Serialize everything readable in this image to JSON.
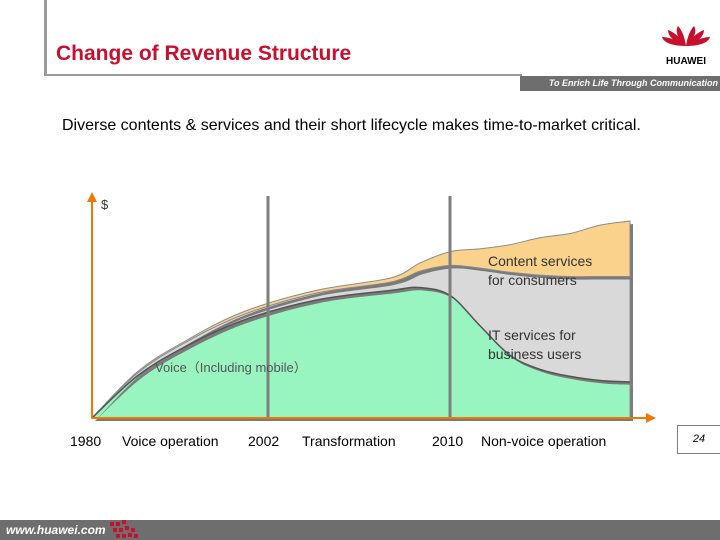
{
  "header": {
    "title": "Change of Revenue Structure",
    "slogan": "To Enrich Life Through Communication",
    "logo_text": "HUAWEI"
  },
  "intro_text": "Diverse contents & services and their short lifecycle makes time-to-market critical.",
  "chart_data": {
    "type": "area",
    "stacked": true,
    "ylabel": "$",
    "x_ticks": [
      "1980",
      "2002",
      "2010"
    ],
    "phases": [
      "Voice operation",
      "Transformation",
      "Non-voice operation"
    ],
    "x": [
      1980,
      1983,
      1986,
      1990,
      1995,
      2000,
      2002,
      2004,
      2006,
      2008,
      2010,
      2012,
      2014,
      2016
    ],
    "series": [
      {
        "name": "Voice（Including mobile）",
        "color": "#99f5bf",
        "values": [
          0,
          30,
          50,
          70,
          85,
          92,
          94,
          88,
          66,
          45,
          35,
          30,
          27,
          26
        ]
      },
      {
        "name": "IT services for business users",
        "color": "#d9d9d9",
        "values": [
          0,
          2,
          3,
          4,
          5,
          6,
          12,
          22,
          42,
          60,
          68,
          72,
          75,
          76
        ]
      },
      {
        "name": "Content services for consumers",
        "color": "#fad28c",
        "values": [
          0,
          1,
          1,
          2,
          2,
          3,
          6,
          10,
          14,
          20,
          27,
          31,
          37,
          40
        ]
      }
    ],
    "labels": {
      "voice": "Voice（Including mobile）",
      "it_line1": "IT services for",
      "it_line2": "business users",
      "content_line1": "Content services",
      "content_line2": "for consumers"
    },
    "grid": false,
    "ylim": [
      0,
      160
    ]
  },
  "page_number": "24",
  "footer": {
    "url": "www.huawei.com"
  }
}
